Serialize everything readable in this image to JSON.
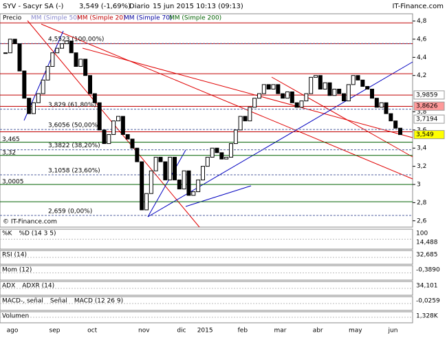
{
  "header": {
    "title": "SYV - Sacyr SA (-)",
    "price": "3,549 (-1,69%)",
    "period": "Diario",
    "date": "15 jun 2015 10:13 (09:13)",
    "brand": "IT-Finance.com"
  },
  "legend": [
    "Precio",
    "MM (Simple 50)",
    "MM (Simple 20)",
    "MM (Simple 70)",
    "MM (Simple 200)"
  ],
  "watermark": "© IT-Finance.com",
  "chart_data": {
    "type": "candlestick",
    "categories": [
      "ago",
      null,
      null,
      null,
      null,
      null,
      null,
      null,
      null,
      "sep",
      null,
      null,
      null,
      null,
      null,
      null,
      null,
      "oct",
      null,
      null,
      null,
      null,
      null,
      null,
      null,
      null,
      null,
      null,
      "nov",
      null,
      null,
      null,
      null,
      null,
      null,
      null,
      "dic",
      null,
      null,
      null,
      null,
      "2015",
      null,
      null,
      null,
      null,
      null,
      null,
      null,
      "feb",
      null,
      null,
      null,
      null,
      null,
      null,
      null,
      "mar",
      null,
      null,
      null,
      null,
      null,
      null,
      null,
      "abr",
      null,
      null,
      null,
      null,
      null,
      null,
      null,
      "may",
      null,
      null,
      null,
      null,
      null,
      null,
      null,
      "jun",
      null,
      null,
      null
    ],
    "values": [
      4.45,
      4.6,
      4.55,
      4.25,
      3.95,
      3.78,
      3.9,
      4.0,
      4.15,
      4.3,
      4.45,
      4.5,
      4.55,
      4.58,
      4.45,
      4.3,
      4.38,
      4.2,
      4.0,
      3.9,
      3.6,
      3.45,
      3.55,
      3.7,
      3.75,
      3.55,
      3.5,
      3.4,
      3.25,
      2.72,
      2.9,
      3.15,
      3.3,
      3.25,
      3.05,
      3.3,
      3.05,
      2.95,
      3.15,
      2.88,
      2.92,
      3.05,
      3.2,
      3.3,
      3.4,
      3.35,
      3.28,
      3.3,
      3.45,
      3.6,
      3.75,
      3.7,
      3.85,
      3.95,
      4.0,
      4.1,
      4.05,
      4.1,
      4.0,
      3.95,
      4.02,
      3.9,
      3.85,
      3.92,
      4.0,
      4.18,
      4.2,
      4.05,
      4.12,
      3.98,
      4.05,
      4.0,
      3.92,
      4.1,
      4.2,
      4.15,
      4.08,
      4.05,
      3.95,
      3.85,
      3.9,
      3.78,
      3.7,
      3.62,
      3.549
    ],
    "up_color": "#ffffff",
    "down_color": "#000000",
    "ylim": [
      2.53,
      4.88
    ],
    "yticks": [
      {
        "value": 4.8,
        "label": "4,8"
      },
      {
        "value": 4.6,
        "label": "4,6"
      },
      {
        "value": 4.4,
        "label": "4,4"
      },
      {
        "value": 4.2,
        "label": "4,2"
      },
      {
        "value": 3.8,
        "label": "3,8"
      },
      {
        "value": 3.6,
        "label": "3,6"
      },
      {
        "value": 3.4,
        "label": "3,4"
      },
      {
        "value": 3.2,
        "label": "3,2"
      },
      3,
      {
        "value": 2.8,
        "label": "2,8"
      },
      {
        "value": 2.6,
        "label": "2,6"
      }
    ],
    "levels": [
      {
        "value": 4.78,
        "color": "#c00000"
      },
      {
        "value": 4.55,
        "color": "#c00000"
      },
      {
        "value": 4.22,
        "color": "#c00000"
      },
      {
        "value": 3.985,
        "color": "#c00000"
      },
      {
        "value": 3.86,
        "color": "#c00000"
      },
      {
        "value": 3.58,
        "color": "#c00000"
      },
      {
        "value": 3.465,
        "color": "#006000"
      },
      {
        "value": 3.32,
        "color": "#006000"
      },
      {
        "value": 3.0,
        "color": "#006000"
      },
      {
        "value": 2.81,
        "color": "#006000"
      }
    ],
    "fib_levels": [
      {
        "value": 4.5523,
        "label": "4,5523 (100,00%)"
      },
      {
        "value": 3.829,
        "label": "3,829 (61,80%)"
      },
      {
        "value": 3.6056,
        "label": "3,6056 (50,00%)"
      },
      {
        "value": 3.3822,
        "label": "3,3822 (38,20%)"
      },
      {
        "value": 3.1058,
        "label": "3,1058 (23,60%)"
      },
      {
        "value": 2.659,
        "label": "2,659 (0,00%)"
      }
    ],
    "left_labels": [
      {
        "value": 3.465,
        "label": "3,465"
      },
      {
        "value": 3.32,
        "label": "3,32"
      },
      {
        "value": 3.0005,
        "label": "3,0005"
      }
    ],
    "right_labels": [
      {
        "value": 3.9859,
        "label": "3,9859",
        "color": "#ffffff"
      },
      {
        "value": 3.8626,
        "label": "3,8626",
        "color": "#ff9999"
      },
      {
        "value": 3.7194,
        "label": "3,7194",
        "color": "#ffffff"
      },
      {
        "value": 3.549,
        "label": "3,549",
        "color": "#ffff00"
      }
    ]
  },
  "panels": [
    {
      "title": "%K",
      "title2": "%D (14 3 5)",
      "labels": [
        "100",
        "14,488"
      ]
    },
    {
      "title": "RSI (14)",
      "labels": [
        "32,685"
      ]
    },
    {
      "title": "Mom (12)",
      "labels": [
        "-0,3890"
      ]
    },
    {
      "title": "ADX",
      "title2": "ADXR (14)",
      "labels": [
        "34,101"
      ]
    },
    {
      "title": "MACD-, señal",
      "title2": "Señal",
      "title3": "MACD (12 26 9)",
      "labels": [
        "-0,0259"
      ]
    },
    {
      "title": "Volumen",
      "labels": [
        "1,328K"
      ]
    }
  ]
}
